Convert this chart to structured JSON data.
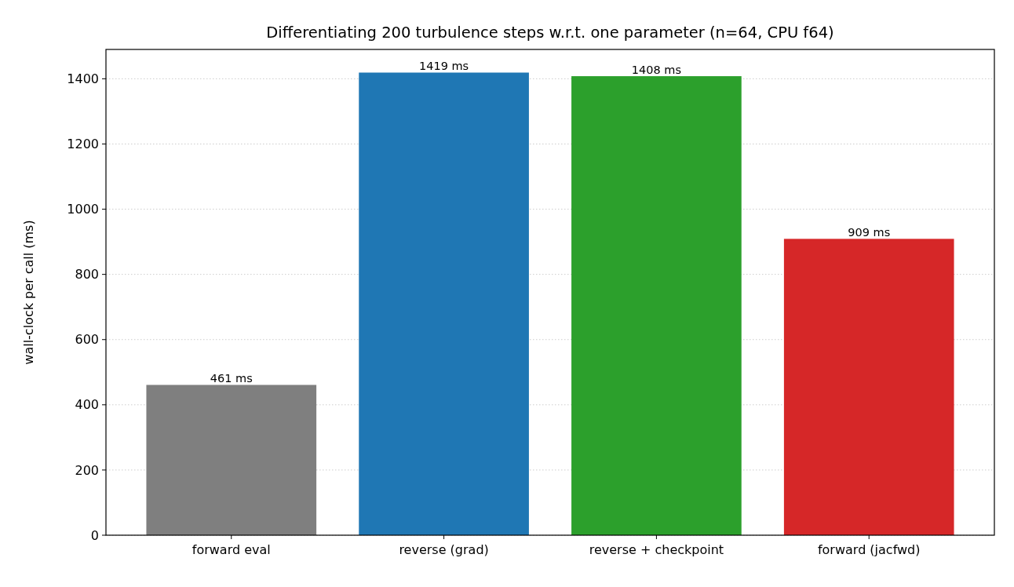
{
  "chart_data": {
    "type": "bar",
    "title": "Differentiating 200 turbulence steps w.r.t. one parameter (n=64, CPU f64)",
    "ylabel": "wall-clock per call (ms)",
    "categories": [
      "forward eval",
      "reverse (grad)",
      "reverse + checkpoint",
      "forward (jacfwd)"
    ],
    "values": [
      461,
      1419,
      1408,
      909
    ],
    "colors": [
      "#7f7f7f",
      "#1f77b4",
      "#2ca02c",
      "#d62728"
    ],
    "value_labels": [
      "461 ms",
      "1419 ms",
      "1408 ms",
      "909 ms"
    ],
    "ylim": [
      0,
      1490
    ],
    "yticks": [
      0,
      200,
      400,
      600,
      800,
      1000,
      1200,
      1400
    ],
    "grid": "y"
  }
}
